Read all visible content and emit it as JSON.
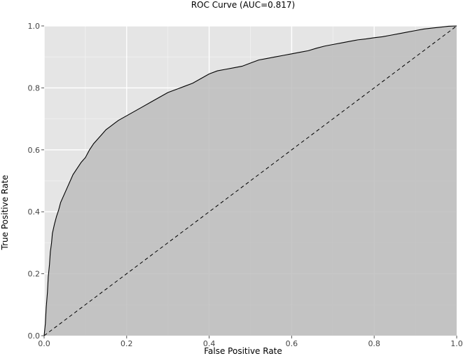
{
  "chart_data": {
    "type": "area",
    "title": "ROC Curve (AUC=0.817)",
    "xlabel": "False Positive Rate",
    "ylabel": "True Positive Rate",
    "xlim": [
      0.0,
      1.0
    ],
    "ylim": [
      0.0,
      1.0
    ],
    "xticks": [
      "0.0",
      "0.2",
      "0.4",
      "0.6",
      "0.8",
      "1.0"
    ],
    "yticks": [
      "0.0",
      "0.2",
      "0.4",
      "0.6",
      "0.8",
      "1.0"
    ],
    "grid": true,
    "legend": "none",
    "series": [
      {
        "kind": "roc",
        "x": [
          0.0,
          0.003,
          0.005,
          0.008,
          0.01,
          0.013,
          0.015,
          0.018,
          0.02,
          0.025,
          0.03,
          0.035,
          0.04,
          0.05,
          0.06,
          0.07,
          0.08,
          0.09,
          0.1,
          0.11,
          0.12,
          0.13,
          0.14,
          0.15,
          0.16,
          0.17,
          0.18,
          0.2,
          0.22,
          0.24,
          0.26,
          0.28,
          0.3,
          0.32,
          0.34,
          0.36,
          0.38,
          0.4,
          0.42,
          0.44,
          0.46,
          0.48,
          0.5,
          0.52,
          0.54,
          0.56,
          0.58,
          0.6,
          0.62,
          0.64,
          0.66,
          0.68,
          0.7,
          0.72,
          0.74,
          0.76,
          0.78,
          0.8,
          0.82,
          0.84,
          0.86,
          0.88,
          0.9,
          0.92,
          0.94,
          0.96,
          0.98,
          1.0
        ],
        "y": [
          0.0,
          0.04,
          0.09,
          0.14,
          0.19,
          0.23,
          0.27,
          0.3,
          0.33,
          0.36,
          0.385,
          0.405,
          0.43,
          0.46,
          0.49,
          0.52,
          0.54,
          0.56,
          0.575,
          0.6,
          0.62,
          0.635,
          0.65,
          0.665,
          0.675,
          0.685,
          0.695,
          0.71,
          0.725,
          0.74,
          0.755,
          0.77,
          0.785,
          0.795,
          0.805,
          0.815,
          0.83,
          0.845,
          0.855,
          0.86,
          0.865,
          0.87,
          0.88,
          0.89,
          0.895,
          0.9,
          0.905,
          0.91,
          0.915,
          0.92,
          0.928,
          0.935,
          0.94,
          0.945,
          0.95,
          0.955,
          0.958,
          0.962,
          0.965,
          0.97,
          0.975,
          0.98,
          0.985,
          0.99,
          0.993,
          0.996,
          0.999,
          1.0
        ]
      },
      {
        "kind": "chance",
        "x": [
          0.0,
          1.0
        ],
        "y": [
          0.0,
          1.0
        ]
      }
    ],
    "colors": {
      "panel": "#e5e5e5",
      "area": "#bdbdbd",
      "grid_major": "#ffffff",
      "grid_minor": "#f2f2f2",
      "line": "#000000"
    }
  }
}
